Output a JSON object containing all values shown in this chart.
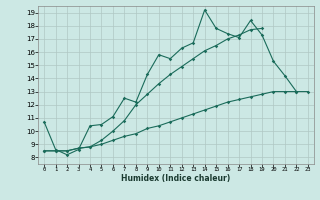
{
  "xlabel": "Humidex (Indice chaleur)",
  "background_color": "#cce8e4",
  "grid_color": "#b0c8c4",
  "line_color": "#1a6b5a",
  "xlim": [
    -0.5,
    23.5
  ],
  "ylim": [
    7.5,
    19.5
  ],
  "xticks": [
    0,
    1,
    2,
    3,
    4,
    5,
    6,
    7,
    8,
    9,
    10,
    11,
    12,
    13,
    14,
    15,
    16,
    17,
    18,
    19,
    20,
    21,
    22,
    23
  ],
  "yticks": [
    8,
    9,
    10,
    11,
    12,
    13,
    14,
    15,
    16,
    17,
    18,
    19
  ],
  "line1_y": [
    10.7,
    8.6,
    8.2,
    8.6,
    10.4,
    10.5,
    11.1,
    12.5,
    12.2,
    14.3,
    15.8,
    15.5,
    16.3,
    16.7,
    19.2,
    17.8,
    17.4,
    17.1,
    18.4,
    17.3,
    15.3,
    14.2,
    13.0,
    null
  ],
  "line2_y": [
    8.5,
    8.5,
    8.5,
    8.7,
    8.8,
    9.0,
    9.3,
    9.6,
    9.8,
    10.2,
    10.4,
    10.7,
    11.0,
    11.3,
    11.6,
    11.9,
    12.2,
    12.4,
    12.6,
    12.8,
    13.0,
    13.0,
    13.0,
    13.0
  ],
  "line3_y": [
    8.5,
    8.5,
    8.5,
    8.7,
    8.8,
    9.3,
    10.0,
    10.8,
    12.0,
    12.8,
    13.6,
    14.3,
    14.9,
    15.5,
    16.1,
    16.5,
    17.0,
    17.3,
    17.7,
    17.8,
    null,
    null,
    null,
    null
  ]
}
